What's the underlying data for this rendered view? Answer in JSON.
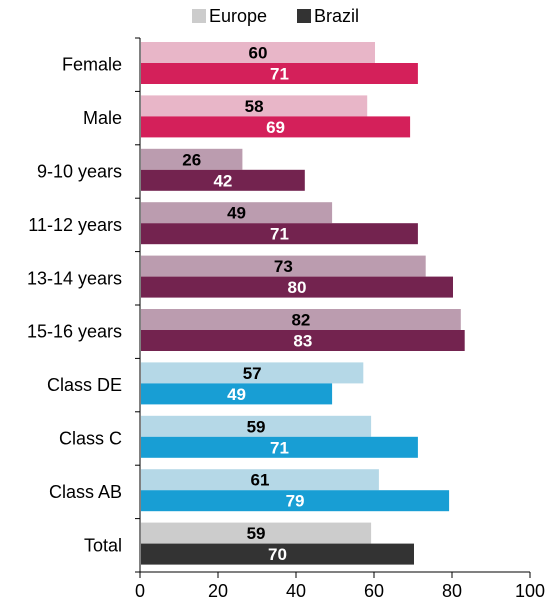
{
  "chart_data": {
    "type": "bar",
    "orientation": "horizontal",
    "legend_position": "top",
    "xlim": [
      0,
      100
    ],
    "xticks": [
      0,
      20,
      40,
      60,
      80,
      100
    ],
    "grid": false,
    "categories": [
      "Female",
      "Male",
      "9-10 years",
      "11-12 years",
      "13-14 years",
      "15-16 years",
      "Class DE",
      "Class C",
      "Class AB",
      "Total"
    ],
    "series": [
      {
        "name": "Europe",
        "legend_color": "#cccccc",
        "values": [
          60,
          58,
          26,
          49,
          73,
          82,
          57,
          59,
          61,
          59
        ],
        "colors": [
          "#e8b6c8",
          "#e8b6c8",
          "#bb9caf",
          "#bb9caf",
          "#bb9caf",
          "#bb9caf",
          "#b5d8e7",
          "#b5d8e7",
          "#b5d8e7",
          "#cccccc"
        ],
        "label_color": "#000000"
      },
      {
        "name": "Brazil",
        "legend_color": "#333333",
        "values": [
          71,
          69,
          42,
          71,
          80,
          83,
          49,
          71,
          79,
          70
        ],
        "colors": [
          "#d4205a",
          "#d4205a",
          "#73234f",
          "#73234f",
          "#73234f",
          "#73234f",
          "#189ed4",
          "#189ed4",
          "#189ed4",
          "#333333"
        ],
        "label_color": "#ffffff"
      }
    ]
  }
}
